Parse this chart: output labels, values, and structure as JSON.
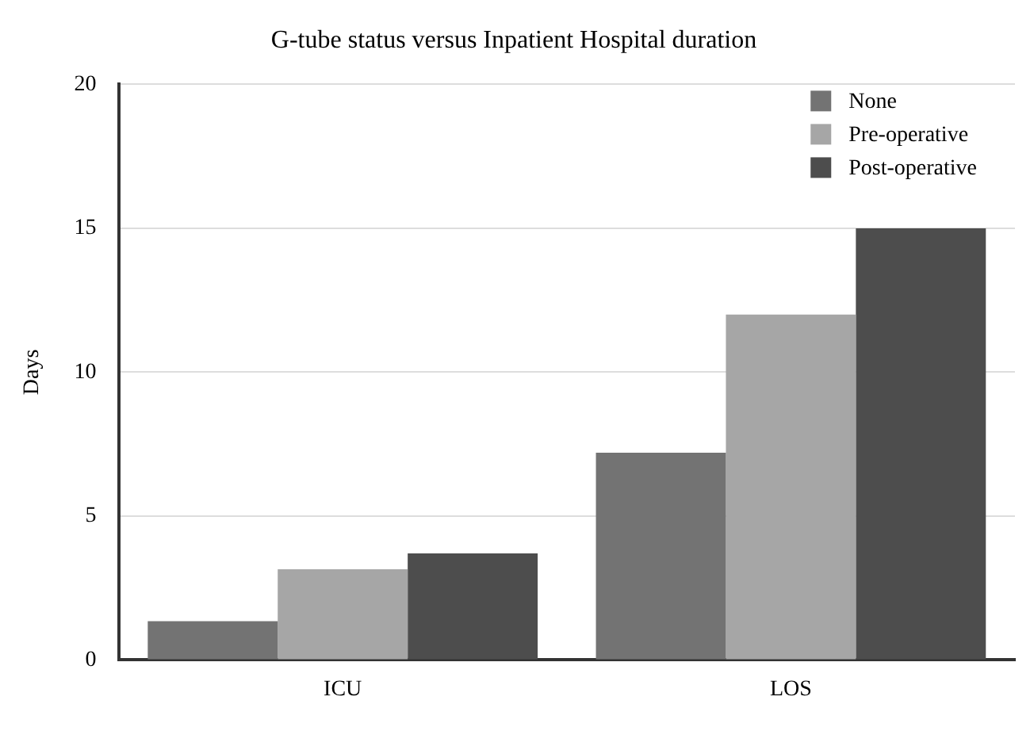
{
  "chart_data": {
    "type": "bar",
    "title": "G-tube status versus Inpatient Hospital duration",
    "ylabel": "Days",
    "categories": [
      "ICU",
      "LOS"
    ],
    "series": [
      {
        "name": "None",
        "color": "#737373",
        "values": [
          1.35,
          7.2
        ]
      },
      {
        "name": "Pre-operative",
        "color": "#a6a6a6",
        "values": [
          3.15,
          12
        ]
      },
      {
        "name": "Post-operative",
        "color": "#4d4d4d",
        "values": [
          3.7,
          15
        ]
      }
    ],
    "ylim": [
      0,
      20
    ],
    "yticks": [
      0,
      5,
      10,
      15,
      20
    ],
    "grid": "y",
    "legend": "top right"
  }
}
